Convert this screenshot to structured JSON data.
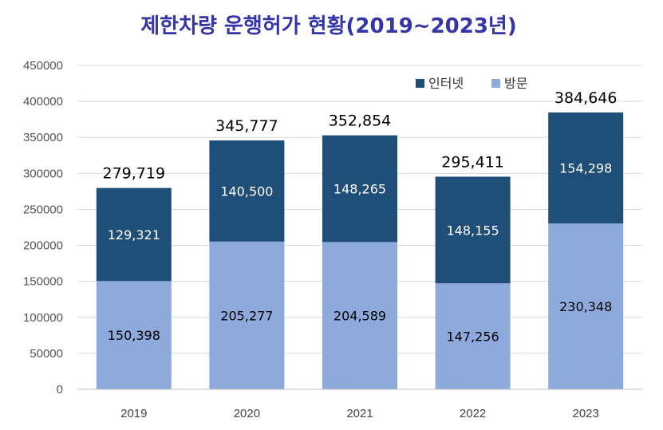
{
  "chart_data": {
    "type": "bar",
    "stacked": true,
    "title": "제한차량 운행허가 현황(2019~2023년)",
    "categories": [
      "2019",
      "2020",
      "2021",
      "2022",
      "2023"
    ],
    "series": [
      {
        "name": "방문",
        "values": [
          150398,
          205277,
          204589,
          147256,
          230348
        ],
        "color": "#8eaadc"
      },
      {
        "name": "인터넷",
        "values": [
          129321,
          140500,
          148265,
          148155,
          154298
        ],
        "color": "#1f4e79"
      }
    ],
    "series_labels": [
      [
        "150,398",
        "205,277",
        "204,589",
        "147,256",
        "230,348"
      ],
      [
        "129,321",
        "140,500",
        "148,265",
        "148,155",
        "154,298"
      ]
    ],
    "totals": [
      279719,
      345777,
      352854,
      295411,
      384646
    ],
    "total_labels": [
      "279,719",
      "345,777",
      "352,854",
      "295,411",
      "384,646"
    ],
    "ylim": [
      0,
      450000
    ],
    "yticks": [
      "0",
      "50000",
      "100000",
      "150000",
      "200000",
      "250000",
      "300000",
      "350000",
      "400000",
      "450000"
    ],
    "legend": [
      {
        "name": "인터넷",
        "color": "#1f4e79"
      },
      {
        "name": "방문",
        "color": "#8eaadc"
      }
    ],
    "legend_position": "top-right",
    "grid": true
  }
}
